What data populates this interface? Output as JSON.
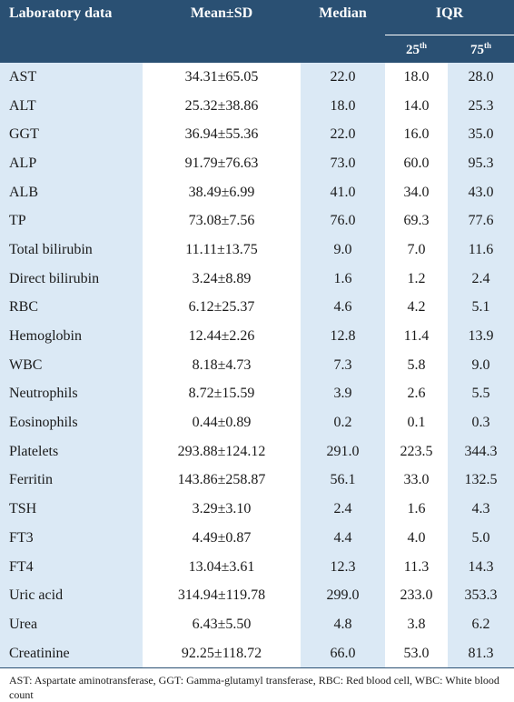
{
  "table": {
    "headers": {
      "lab": "Laboratory data",
      "mean": "Mean±SD",
      "median": "Median",
      "iqr": "IQR",
      "p25": "25",
      "p25_sup": "th",
      "p75": "75",
      "p75_sup": "th"
    },
    "rows": [
      {
        "lab": "AST",
        "mean": "34.31±65.05",
        "median": "22.0",
        "p25": "18.0",
        "p75": "28.0"
      },
      {
        "lab": "ALT",
        "mean": "25.32±38.86",
        "median": "18.0",
        "p25": "14.0",
        "p75": "25.3"
      },
      {
        "lab": "GGT",
        "mean": "36.94±55.36",
        "median": "22.0",
        "p25": "16.0",
        "p75": "35.0"
      },
      {
        "lab": "ALP",
        "mean": "91.79±76.63",
        "median": "73.0",
        "p25": "60.0",
        "p75": "95.3"
      },
      {
        "lab": "ALB",
        "mean": "38.49±6.99",
        "median": "41.0",
        "p25": "34.0",
        "p75": "43.0"
      },
      {
        "lab": "TP",
        "mean": "73.08±7.56",
        "median": "76.0",
        "p25": "69.3",
        "p75": "77.6"
      },
      {
        "lab": "Total bilirubin",
        "mean": "11.11±13.75",
        "median": "9.0",
        "p25": "7.0",
        "p75": "11.6"
      },
      {
        "lab": "Direct bilirubin",
        "mean": "3.24±8.89",
        "median": "1.6",
        "p25": "1.2",
        "p75": "2.4"
      },
      {
        "lab": "RBC",
        "mean": "6.12±25.37",
        "median": "4.6",
        "p25": "4.2",
        "p75": "5.1"
      },
      {
        "lab": "Hemoglobin",
        "mean": "12.44±2.26",
        "median": "12.8",
        "p25": "11.4",
        "p75": "13.9"
      },
      {
        "lab": "WBC",
        "mean": "8.18±4.73",
        "median": "7.3",
        "p25": "5.8",
        "p75": "9.0"
      },
      {
        "lab": "Neutrophils",
        "mean": "8.72±15.59",
        "median": "3.9",
        "p25": "2.6",
        "p75": "5.5"
      },
      {
        "lab": "Eosinophils",
        "mean": "0.44±0.89",
        "median": "0.2",
        "p25": "0.1",
        "p75": "0.3"
      },
      {
        "lab": "Platelets",
        "mean": "293.88±124.12",
        "median": "291.0",
        "p25": "223.5",
        "p75": "344.3"
      },
      {
        "lab": "Ferritin",
        "mean": "143.86±258.87",
        "median": "56.1",
        "p25": "33.0",
        "p75": "132.5"
      },
      {
        "lab": "TSH",
        "mean": "3.29±3.10",
        "median": "2.4",
        "p25": "1.6",
        "p75": "4.3"
      },
      {
        "lab": "FT3",
        "mean": "4.49±0.87",
        "median": "4.4",
        "p25": "4.0",
        "p75": "5.0"
      },
      {
        "lab": "FT4",
        "mean": "13.04±3.61",
        "median": "12.3",
        "p25": "11.3",
        "p75": "14.3"
      },
      {
        "lab": "Uric acid",
        "mean": "314.94±119.78",
        "median": "299.0",
        "p25": "233.0",
        "p75": "353.3"
      },
      {
        "lab": "Urea",
        "mean": "6.43±5.50",
        "median": "4.8",
        "p25": "3.8",
        "p75": "6.2"
      },
      {
        "lab": "Creatinine",
        "mean": "92.25±118.72",
        "median": "66.0",
        "p25": "53.0",
        "p75": "81.3"
      }
    ]
  },
  "footnote": "AST: Aspartate aminotransferase, GGT: Gamma-glutamyl transferase, RBC: Red blood cell, WBC: White blood count",
  "colors": {
    "header_bg": "#2a5073",
    "shade_bg": "#dbe9f5"
  }
}
